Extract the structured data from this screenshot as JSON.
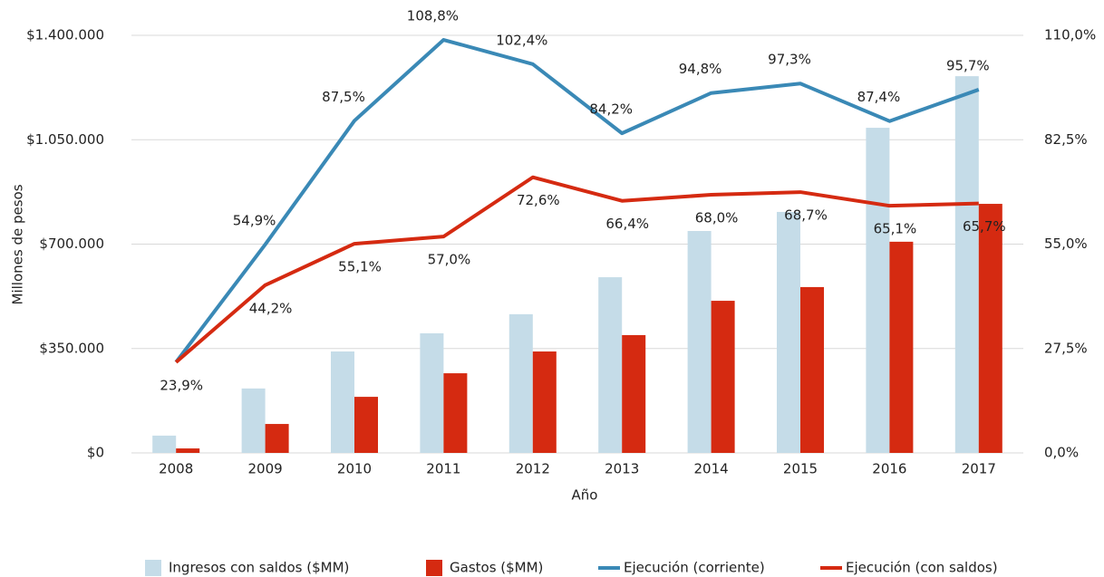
{
  "chart_data": {
    "type": "bar-line",
    "x_label": "Año",
    "y_label": "Millones de pesos",
    "categories": [
      "2008",
      "2009",
      "2010",
      "2011",
      "2012",
      "2013",
      "2014",
      "2015",
      "2016",
      "2017"
    ],
    "series": [
      {
        "name": "Ingresos con saldos ($MM)",
        "type": "bar",
        "color": "#c5dce8",
        "values": [
          58000,
          216000,
          340000,
          401000,
          465000,
          589000,
          744000,
          808000,
          1090000,
          1263000
        ]
      },
      {
        "name": "Gastos ($MM)",
        "type": "bar",
        "color": "#d52a11",
        "values": [
          15000,
          97000,
          188000,
          267000,
          340000,
          395000,
          510000,
          556000,
          708000,
          835000
        ]
      },
      {
        "name": "Ejecución (corriente)",
        "type": "line",
        "axis": "y2",
        "color": "#3a89b6",
        "values": [
          23.9,
          54.9,
          87.5,
          108.8,
          102.4,
          84.2,
          94.8,
          97.3,
          87.4,
          95.7
        ],
        "value_labels": [
          null,
          "54,9%",
          "87,5%",
          "108,8%",
          "102,4%",
          "84,2%",
          "94,8%",
          "97,3%",
          "87,4%",
          "95,7%"
        ]
      },
      {
        "name": "Ejecución (con saldos)",
        "type": "line",
        "axis": "y2",
        "color": "#d52a11",
        "values": [
          23.9,
          44.2,
          55.1,
          57.0,
          72.6,
          66.4,
          68.0,
          68.7,
          65.1,
          65.7
        ],
        "value_labels": [
          "23,9%",
          "44,2%",
          "55,1%",
          "57,0%",
          "72,6%",
          "66,4%",
          "68,0%",
          "68,7%",
          "65,1%",
          "65,7%"
        ]
      }
    ],
    "ylim": [
      0,
      1400000
    ],
    "yticks": [
      {
        "value": 0,
        "label": "$0"
      },
      {
        "value": 350000,
        "label": "$350.000"
      },
      {
        "value": 700000,
        "label": "$700.000"
      },
      {
        "value": 1050000,
        "label": "$1.050.000"
      },
      {
        "value": 1400000,
        "label": "$1.400.000"
      }
    ],
    "y2lim": [
      0,
      110
    ],
    "y2ticks": [
      {
        "value": 0,
        "label": "0,0%"
      },
      {
        "value": 27.5,
        "label": "27,5%"
      },
      {
        "value": 55,
        "label": "55,0%"
      },
      {
        "value": 82.5,
        "label": "82,5%"
      },
      {
        "value": 110,
        "label": "110,0%"
      }
    ],
    "grid": true,
    "legend": "bottom"
  }
}
